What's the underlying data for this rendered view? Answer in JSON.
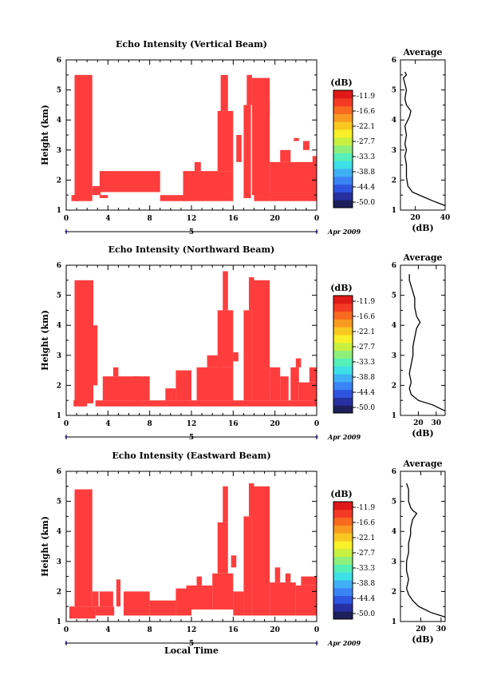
{
  "colors": {
    "echo": "#ff3d3d",
    "colorbar": [
      "#1c1f5a",
      "#2730a0",
      "#2e55e0",
      "#3a84f5",
      "#3fb0f5",
      "#3ee0e8",
      "#54f0b8",
      "#8ef07a",
      "#c8f040",
      "#f8f028",
      "#f8c820",
      "#f89a20",
      "#f86a20",
      "#f43a24",
      "#e01818"
    ]
  },
  "chart_data": [
    {
      "type": "heatmap",
      "title": "Echo Intensity (Vertical Beam)",
      "xlabel": "",
      "ylabel": "Height (km)",
      "xlim": [
        0,
        24
      ],
      "ylim": [
        1,
        6
      ],
      "x_ticks": [
        "0",
        "4",
        "8",
        "12",
        "16",
        "20",
        "0"
      ],
      "y_ticks": [
        "1",
        "2",
        "3",
        "4",
        "5",
        "6"
      ],
      "date_labels": [
        "5",
        "Apr 2009"
      ],
      "colorbar": {
        "label": "(dB)",
        "ticks": [
          "-11.9",
          "-16.6",
          "-22.1",
          "-27.7",
          "-33.3",
          "-38.8",
          "-44.4",
          "-50.0"
        ]
      },
      "echo_blocks": [
        [
          0.5,
          1.1,
          1.3,
          1.5
        ],
        [
          0.8,
          2.5,
          1.3,
          5.5
        ],
        [
          2.5,
          3.3,
          1.5,
          1.8
        ],
        [
          3.2,
          4.0,
          1.4,
          1.5
        ],
        [
          3.2,
          9.0,
          1.6,
          2.3
        ],
        [
          9.0,
          11.5,
          1.3,
          1.5
        ],
        [
          11.2,
          16.0,
          1.3,
          2.3
        ],
        [
          12.3,
          12.9,
          2.3,
          2.6
        ],
        [
          14.5,
          16.0,
          2.3,
          4.3
        ],
        [
          14.8,
          15.5,
          4.3,
          5.5
        ],
        [
          16.3,
          16.8,
          2.6,
          3.5
        ],
        [
          17.0,
          17.7,
          1.4,
          4.5
        ],
        [
          17.3,
          17.8,
          4.5,
          5.5
        ],
        [
          17.8,
          19.5,
          1.5,
          5.4
        ],
        [
          19.0,
          19.5,
          4.2,
          4.7
        ],
        [
          18.0,
          24.0,
          1.3,
          1.6
        ],
        [
          19.5,
          24.0,
          1.6,
          2.6
        ],
        [
          20.5,
          21.5,
          2.6,
          3.0
        ],
        [
          22.7,
          23.3,
          3.0,
          3.3
        ],
        [
          21.8,
          22.3,
          3.3,
          3.4
        ],
        [
          23.6,
          24.0,
          2.5,
          2.8
        ]
      ],
      "average_profile": {
        "title": "Average",
        "xlabel": "(dB)",
        "xlim": [
          10,
          40
        ],
        "x_ticks": [
          "20",
          "40"
        ],
        "y_ticks": [
          "1",
          "2",
          "3",
          "4",
          "5",
          "6"
        ],
        "points": [
          [
            40,
            1.15
          ],
          [
            32,
            1.3
          ],
          [
            25,
            1.45
          ],
          [
            18,
            1.6
          ],
          [
            15,
            1.8
          ],
          [
            14,
            2.1
          ],
          [
            14,
            2.5
          ],
          [
            13,
            2.8
          ],
          [
            14,
            3.0
          ],
          [
            13,
            3.2
          ],
          [
            14,
            3.5
          ],
          [
            13,
            3.8
          ],
          [
            15,
            4.0
          ],
          [
            16,
            4.1
          ],
          [
            17,
            4.3
          ],
          [
            14,
            4.5
          ],
          [
            13,
            4.7
          ],
          [
            14,
            5.0
          ],
          [
            13,
            5.2
          ],
          [
            12,
            5.4
          ],
          [
            14,
            5.5
          ],
          [
            13,
            5.6
          ]
        ]
      }
    },
    {
      "type": "heatmap",
      "title": "Echo Intensity (Northward Beam)",
      "xlabel": "",
      "ylabel": "Height (km)",
      "xlim": [
        0,
        24
      ],
      "ylim": [
        1,
        6
      ],
      "x_ticks": [
        "0",
        "4",
        "8",
        "12",
        "16",
        "20",
        "0"
      ],
      "y_ticks": [
        "1",
        "2",
        "3",
        "4",
        "5",
        "6"
      ],
      "date_labels": [
        "5",
        "Apr 2009"
      ],
      "colorbar": {
        "label": "(dB)",
        "ticks": [
          "-11.9",
          "-16.6",
          "-22.1",
          "-27.7",
          "-33.3",
          "-38.8",
          "-44.4",
          "-50.0"
        ]
      },
      "echo_blocks": [
        [
          0.7,
          2.0,
          1.3,
          1.5
        ],
        [
          0.8,
          2.6,
          1.4,
          5.5
        ],
        [
          2.6,
          3.0,
          2.0,
          4.0
        ],
        [
          2.8,
          24.0,
          1.3,
          1.5
        ],
        [
          3.5,
          7.0,
          1.5,
          2.3
        ],
        [
          4.5,
          5.0,
          2.3,
          2.6
        ],
        [
          6.5,
          8.0,
          1.5,
          2.3
        ],
        [
          9.5,
          10.5,
          1.5,
          1.9
        ],
        [
          10.5,
          12.0,
          1.5,
          2.5
        ],
        [
          12.5,
          16.0,
          1.5,
          2.6
        ],
        [
          13.5,
          15.0,
          2.6,
          3.0
        ],
        [
          14.5,
          16.0,
          2.6,
          4.5
        ],
        [
          15.0,
          15.5,
          4.5,
          5.8
        ],
        [
          16.0,
          16.5,
          2.8,
          3.1
        ],
        [
          17.0,
          17.8,
          1.5,
          4.5
        ],
        [
          17.5,
          18.0,
          4.5,
          5.6
        ],
        [
          17.8,
          19.5,
          1.5,
          5.5
        ],
        [
          19.5,
          20.5,
          1.5,
          2.6
        ],
        [
          20.5,
          21.3,
          1.5,
          2.3
        ],
        [
          21.5,
          22.3,
          1.5,
          2.6
        ],
        [
          22.0,
          22.5,
          2.6,
          2.9
        ],
        [
          22.3,
          24.0,
          1.5,
          2.1
        ],
        [
          23.3,
          24.0,
          2.1,
          2.6
        ]
      ],
      "average_profile": {
        "title": "Average",
        "xlabel": "(dB)",
        "xlim": [
          10,
          35
        ],
        "x_ticks": [
          "20",
          "30"
        ],
        "y_ticks": [
          "1",
          "2",
          "3",
          "4",
          "5",
          "6"
        ],
        "points": [
          [
            35,
            1.15
          ],
          [
            28,
            1.35
          ],
          [
            20,
            1.5
          ],
          [
            16,
            1.7
          ],
          [
            15,
            1.9
          ],
          [
            16,
            2.1
          ],
          [
            15,
            2.4
          ],
          [
            16,
            2.7
          ],
          [
            17,
            3.0
          ],
          [
            17,
            3.3
          ],
          [
            18,
            3.6
          ],
          [
            19,
            3.9
          ],
          [
            21,
            4.1
          ],
          [
            19,
            4.3
          ],
          [
            18,
            4.6
          ],
          [
            18,
            4.9
          ],
          [
            17,
            5.1
          ],
          [
            16,
            5.3
          ],
          [
            15,
            5.5
          ],
          [
            15,
            5.7
          ]
        ]
      }
    },
    {
      "type": "heatmap",
      "title": "Echo Intensity (Eastward Beam)",
      "xlabel": "Local Time",
      "ylabel": "Height (km)",
      "xlim": [
        0,
        24
      ],
      "ylim": [
        1,
        6
      ],
      "x_ticks": [
        "0",
        "4",
        "8",
        "12",
        "16",
        "20",
        "0"
      ],
      "y_ticks": [
        "1",
        "2",
        "3",
        "4",
        "5",
        "6"
      ],
      "date_labels": [
        "5",
        "Apr 2009"
      ],
      "colorbar": {
        "label": "(dB)",
        "ticks": [
          "-11.9",
          "-16.6",
          "-22.1",
          "-27.7",
          "-33.3",
          "-38.8",
          "-44.4",
          "-50.0"
        ]
      },
      "echo_blocks": [
        [
          0.3,
          2.8,
          1.1,
          1.5
        ],
        [
          0.8,
          2.5,
          1.5,
          5.4
        ],
        [
          2.5,
          3.1,
          1.5,
          2.0
        ],
        [
          2.8,
          4.6,
          1.2,
          1.5
        ],
        [
          3.2,
          4.5,
          1.5,
          2.0
        ],
        [
          4.8,
          5.2,
          1.5,
          2.4
        ],
        [
          5.5,
          8.0,
          1.2,
          2.0
        ],
        [
          8.0,
          10.5,
          1.2,
          1.7
        ],
        [
          10.5,
          12.0,
          1.2,
          2.1
        ],
        [
          11.5,
          14.0,
          1.4,
          2.2
        ],
        [
          12.5,
          13.0,
          2.2,
          2.5
        ],
        [
          14.0,
          16.0,
          1.4,
          2.6
        ],
        [
          14.5,
          15.5,
          2.6,
          4.3
        ],
        [
          15.0,
          15.5,
          4.3,
          5.5
        ],
        [
          15.8,
          16.3,
          2.8,
          3.2
        ],
        [
          16.0,
          17.0,
          1.2,
          2.0
        ],
        [
          17.0,
          17.8,
          1.2,
          4.5
        ],
        [
          17.5,
          18.0,
          4.5,
          5.6
        ],
        [
          17.8,
          19.5,
          1.2,
          5.5
        ],
        [
          19.5,
          22.0,
          1.2,
          2.3
        ],
        [
          20.0,
          20.5,
          2.3,
          2.8
        ],
        [
          21.0,
          21.5,
          2.3,
          2.6
        ],
        [
          22.0,
          24.0,
          1.2,
          2.2
        ],
        [
          22.5,
          24.0,
          2.2,
          2.5
        ]
      ],
      "average_profile": {
        "title": "Average",
        "xlabel": "(dB)",
        "xlim": [
          10,
          32
        ],
        "x_ticks": [
          "20",
          "30"
        ],
        "y_ticks": [
          "1",
          "2",
          "3",
          "4",
          "5",
          "6"
        ],
        "points": [
          [
            32,
            1.15
          ],
          [
            25,
            1.3
          ],
          [
            19,
            1.5
          ],
          [
            16,
            1.7
          ],
          [
            14,
            1.9
          ],
          [
            13,
            2.1
          ],
          [
            14,
            2.4
          ],
          [
            13,
            2.7
          ],
          [
            13,
            3.0
          ],
          [
            14,
            3.3
          ],
          [
            14,
            3.6
          ],
          [
            15,
            3.9
          ],
          [
            15,
            4.1
          ],
          [
            16,
            4.4
          ],
          [
            18,
            4.6
          ],
          [
            16,
            4.7
          ],
          [
            15,
            4.8
          ],
          [
            14,
            5.0
          ],
          [
            14,
            5.2
          ],
          [
            14,
            5.4
          ],
          [
            13,
            5.6
          ]
        ]
      }
    }
  ]
}
